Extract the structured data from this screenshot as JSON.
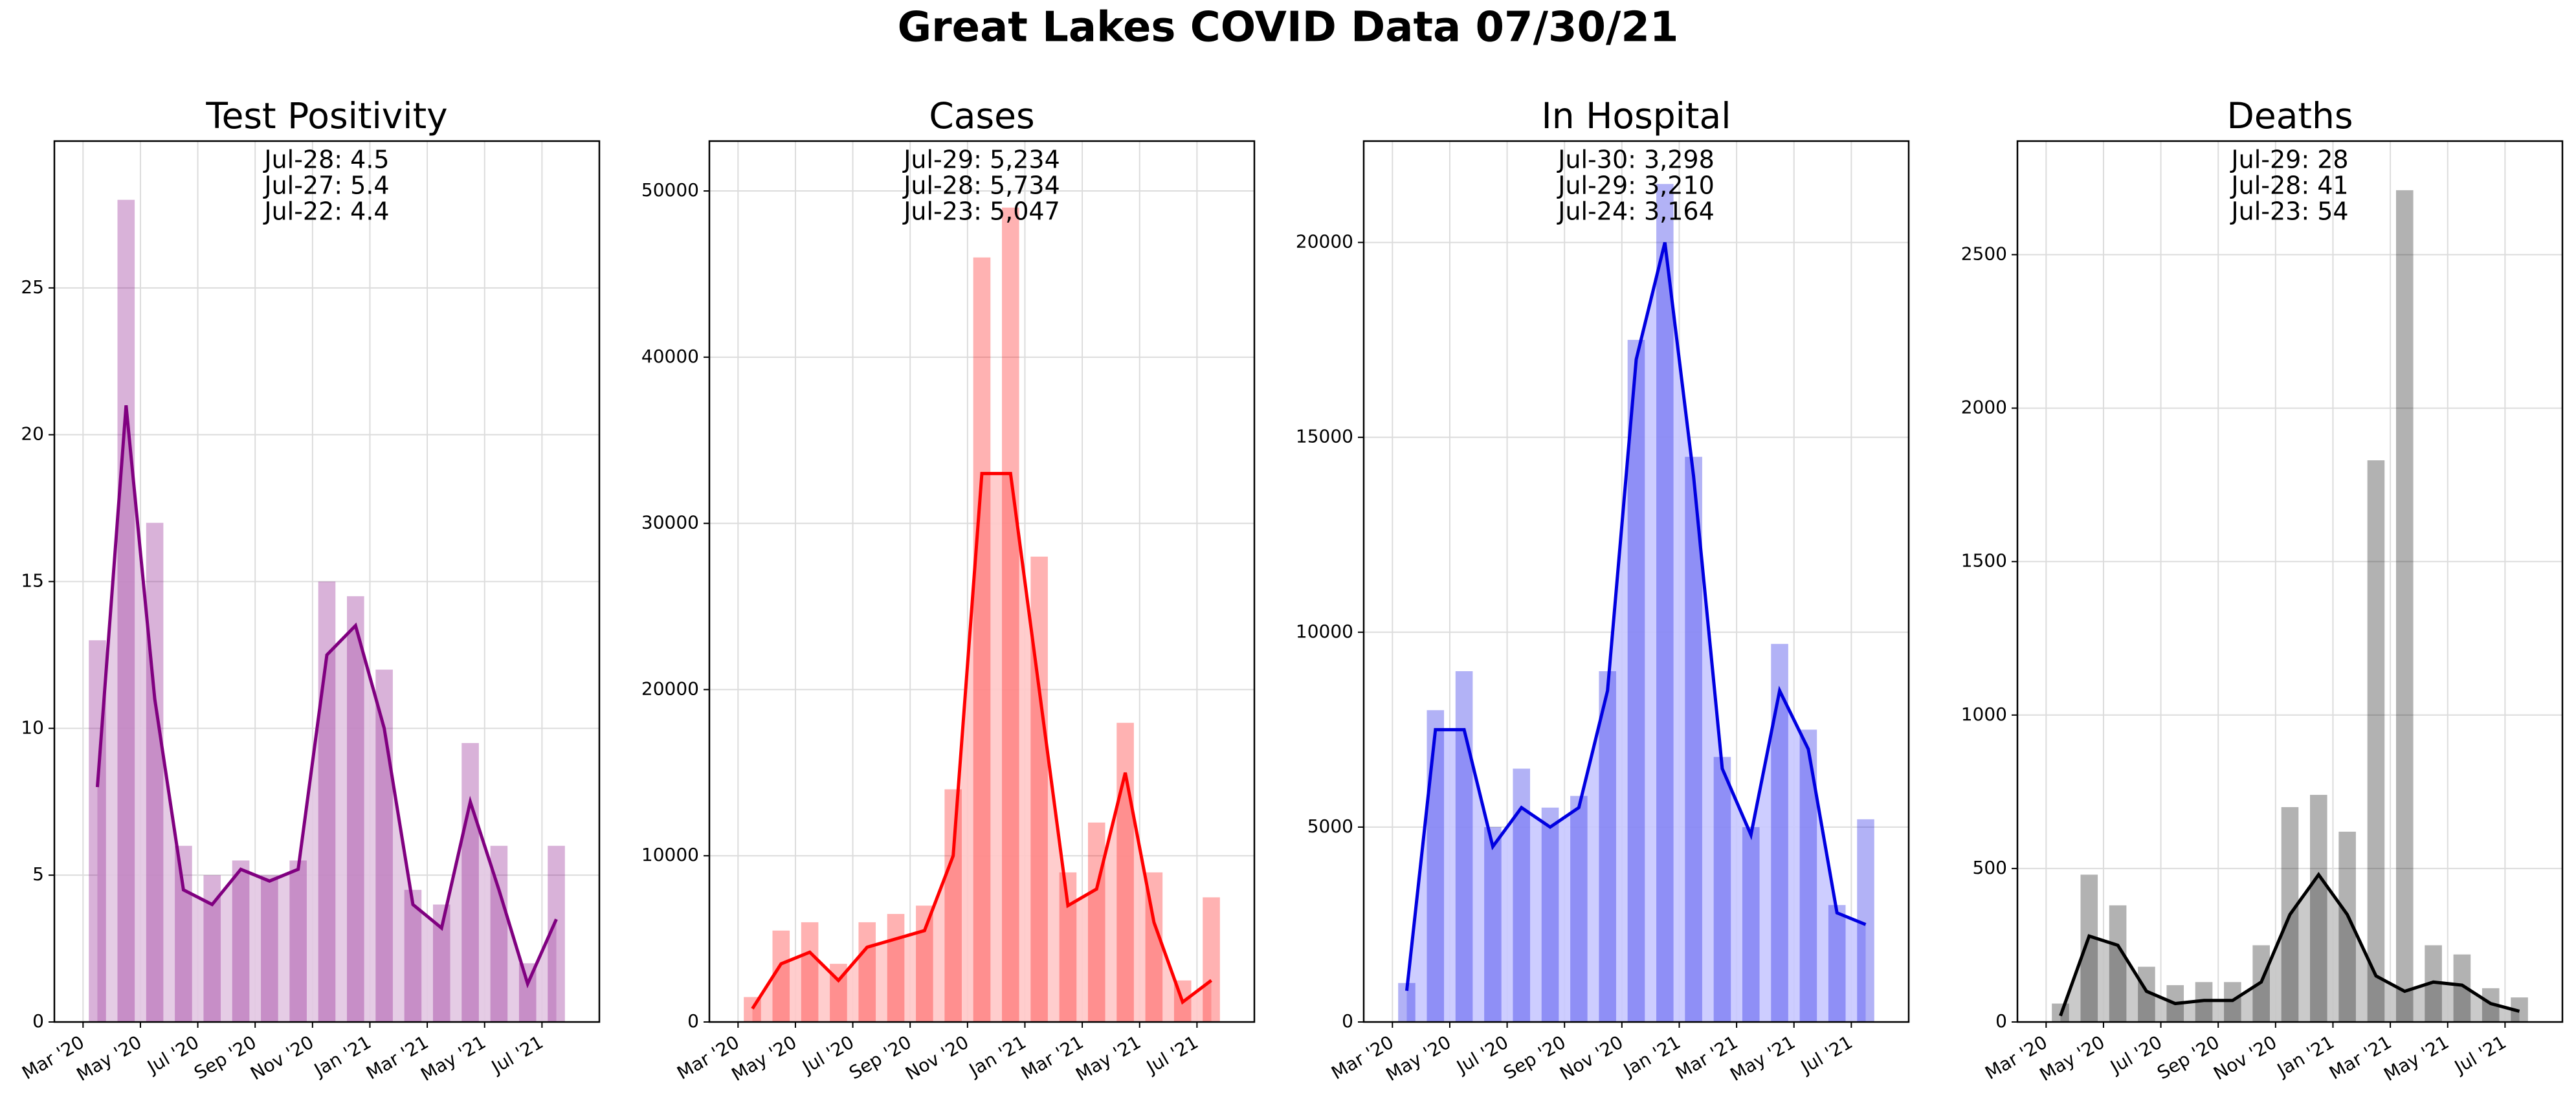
{
  "title": "Great Lakes COVID Data 07/30/21",
  "chart_data": [
    {
      "type": "bar-line",
      "title": "Test Positivity",
      "annotations": [
        "Jul-28: 4.5",
        "Jul-27: 5.4",
        "Jul-22: 4.4"
      ],
      "x": [
        "2020-03",
        "2020-04",
        "2020-05",
        "2020-06",
        "2020-07",
        "2020-08",
        "2020-09",
        "2020-10",
        "2020-11",
        "2020-12",
        "2021-01",
        "2021-02",
        "2021-03",
        "2021-04",
        "2021-05",
        "2021-06",
        "2021-07"
      ],
      "values": [
        13,
        28,
        17,
        6,
        5,
        5.5,
        5,
        5.5,
        15,
        14.5,
        12,
        4.5,
        4,
        9.5,
        6,
        2,
        6
      ],
      "average": [
        8,
        21,
        11,
        4.5,
        4,
        5.2,
        4.8,
        5.2,
        12.5,
        13.5,
        10,
        4,
        3.2,
        7.5,
        4.5,
        1.3,
        3.5
      ],
      "color": "#800080",
      "fill": "#e2c6e2",
      "xlim": [
        "2020-02",
        "2021-09"
      ],
      "ylim": [
        0,
        30
      ],
      "yticks": [
        0,
        5,
        10,
        15,
        20,
        25
      ],
      "xticks": [
        {
          "value": "2020-03",
          "label": "Mar '20"
        },
        {
          "value": "2020-05",
          "label": "May '20"
        },
        {
          "value": "2020-07",
          "label": "Jul '20"
        },
        {
          "value": "2020-09",
          "label": "Sep '20"
        },
        {
          "value": "2020-11",
          "label": "Nov '20"
        },
        {
          "value": "2021-01",
          "label": "Jan '21"
        },
        {
          "value": "2021-03",
          "label": "Mar '21"
        },
        {
          "value": "2021-05",
          "label": "May '21"
        },
        {
          "value": "2021-07",
          "label": "Jul '21"
        }
      ],
      "grid": true
    },
    {
      "type": "bar-line",
      "title": "Cases",
      "annotations": [
        "Jul-29: 5,234",
        "Jul-28: 5,734",
        "Jul-23: 5,047"
      ],
      "x": [
        "2020-03",
        "2020-04",
        "2020-05",
        "2020-06",
        "2020-07",
        "2020-08",
        "2020-09",
        "2020-10",
        "2020-11",
        "2020-12",
        "2021-01",
        "2021-02",
        "2021-03",
        "2021-04",
        "2021-05",
        "2021-06",
        "2021-07"
      ],
      "values": [
        1500,
        5500,
        6000,
        3500,
        6000,
        6500,
        7000,
        14000,
        46000,
        49000,
        28000,
        9000,
        12000,
        18000,
        9000,
        2500,
        7500
      ],
      "average": [
        800,
        3500,
        4200,
        2500,
        4500,
        5000,
        5500,
        10000,
        33000,
        33000,
        20000,
        7000,
        8000,
        15000,
        6000,
        1200,
        2500
      ],
      "color": "#ff0000",
      "fill": "#ffc8c8",
      "xlim": [
        "2020-02",
        "2021-09"
      ],
      "ylim": [
        0,
        53000
      ],
      "yticks": [
        0,
        10000,
        20000,
        30000,
        40000,
        50000
      ],
      "xticks": [
        {
          "value": "2020-03",
          "label": "Mar '20"
        },
        {
          "value": "2020-05",
          "label": "May '20"
        },
        {
          "value": "2020-07",
          "label": "Jul '20"
        },
        {
          "value": "2020-09",
          "label": "Sep '20"
        },
        {
          "value": "2020-11",
          "label": "Nov '20"
        },
        {
          "value": "2021-01",
          "label": "Jan '21"
        },
        {
          "value": "2021-03",
          "label": "Mar '21"
        },
        {
          "value": "2021-05",
          "label": "May '21"
        },
        {
          "value": "2021-07",
          "label": "Jul '21"
        }
      ],
      "grid": true
    },
    {
      "type": "bar-line",
      "title": "In Hospital",
      "annotations": [
        "Jul-30: 3,298",
        "Jul-29: 3,210",
        "Jul-24: 3,164"
      ],
      "x": [
        "2020-03",
        "2020-04",
        "2020-05",
        "2020-06",
        "2020-07",
        "2020-08",
        "2020-09",
        "2020-10",
        "2020-11",
        "2020-12",
        "2021-01",
        "2021-02",
        "2021-03",
        "2021-04",
        "2021-05",
        "2021-06",
        "2021-07"
      ],
      "values": [
        1000,
        8000,
        9000,
        5000,
        6500,
        5500,
        5800,
        9000,
        17500,
        21500,
        14500,
        6800,
        5000,
        9700,
        7500,
        3000,
        5200
      ],
      "average": [
        800,
        7500,
        7500,
        4500,
        5500,
        5000,
        5500,
        8500,
        17000,
        20000,
        14000,
        6500,
        4800,
        8500,
        7000,
        2800,
        2500
      ],
      "color": "#0000e0",
      "fill": "#c8c8ff",
      "xlim": [
        "2020-02",
        "2021-09"
      ],
      "ylim": [
        0,
        22600
      ],
      "yticks": [
        0,
        5000,
        10000,
        15000,
        20000
      ],
      "xticks": [
        {
          "value": "2020-03",
          "label": "Mar '20"
        },
        {
          "value": "2020-05",
          "label": "May '20"
        },
        {
          "value": "2020-07",
          "label": "Jul '20"
        },
        {
          "value": "2020-09",
          "label": "Sep '20"
        },
        {
          "value": "2020-11",
          "label": "Nov '20"
        },
        {
          "value": "2021-01",
          "label": "Jan '21"
        },
        {
          "value": "2021-03",
          "label": "Mar '21"
        },
        {
          "value": "2021-05",
          "label": "May '21"
        },
        {
          "value": "2021-07",
          "label": "Jul '21"
        }
      ],
      "grid": true
    },
    {
      "type": "bar-line",
      "title": "Deaths",
      "annotations": [
        "Jul-29: 28",
        "Jul-28: 41",
        "Jul-23: 54"
      ],
      "x": [
        "2020-03",
        "2020-04",
        "2020-05",
        "2020-06",
        "2020-07",
        "2020-08",
        "2020-09",
        "2020-10",
        "2020-11",
        "2020-12",
        "2021-01",
        "2021-02",
        "2021-03",
        "2021-04",
        "2021-05",
        "2021-06",
        "2021-07"
      ],
      "values": [
        60,
        480,
        380,
        180,
        120,
        130,
        130,
        250,
        700,
        740,
        620,
        1830,
        2710,
        250,
        220,
        110,
        80
      ],
      "average": [
        20,
        280,
        250,
        100,
        60,
        70,
        70,
        130,
        350,
        480,
        350,
        150,
        100,
        130,
        120,
        60,
        35
      ],
      "color": "#000000",
      "fill": "#c4c4c4",
      "xlim": [
        "2020-02",
        "2021-09"
      ],
      "ylim": [
        0,
        2870
      ],
      "yticks": [
        0,
        500,
        1000,
        1500,
        2000,
        2500
      ],
      "xticks": [
        {
          "value": "2020-03",
          "label": "Mar '20"
        },
        {
          "value": "2020-05",
          "label": "May '20"
        },
        {
          "value": "2020-07",
          "label": "Jul '20"
        },
        {
          "value": "2020-09",
          "label": "Sep '20"
        },
        {
          "value": "2020-11",
          "label": "Nov '20"
        },
        {
          "value": "2021-01",
          "label": "Jan '21"
        },
        {
          "value": "2021-03",
          "label": "Mar '21"
        },
        {
          "value": "2021-05",
          "label": "May '21"
        },
        {
          "value": "2021-07",
          "label": "Jul '21"
        }
      ],
      "grid": true
    }
  ]
}
